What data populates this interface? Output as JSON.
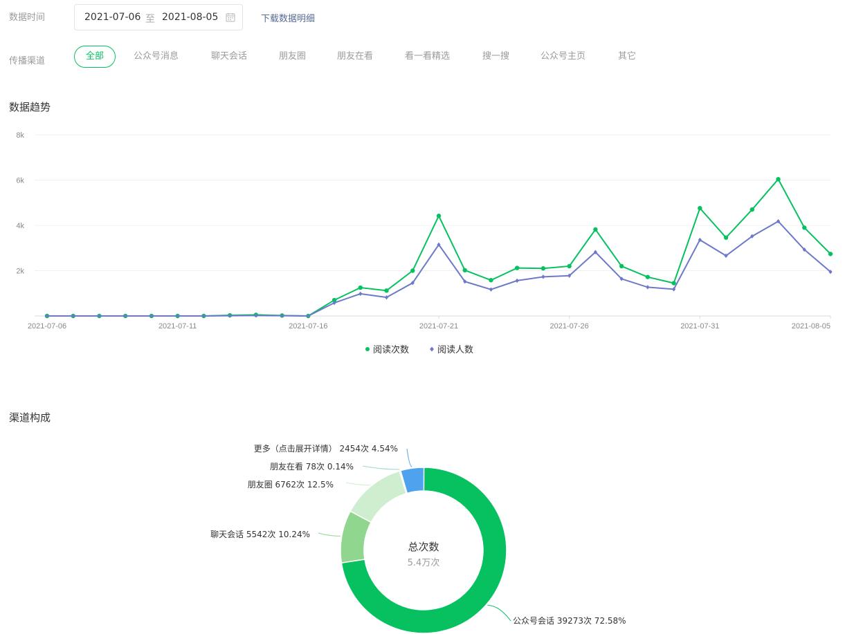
{
  "filters": {
    "date_label": "数据时间",
    "date_start": "2021-07-06",
    "date_separator": "至",
    "date_end": "2021-08-05",
    "download_label": "下载数据明细",
    "channel_label": "传播渠道",
    "tabs": [
      {
        "label": "全部",
        "active": true
      },
      {
        "label": "公众号消息",
        "active": false
      },
      {
        "label": "聊天会话",
        "active": false
      },
      {
        "label": "朋友圈",
        "active": false
      },
      {
        "label": "朋友在看",
        "active": false
      },
      {
        "label": "看一看精选",
        "active": false
      },
      {
        "label": "搜一搜",
        "active": false
      },
      {
        "label": "公众号主页",
        "active": false
      },
      {
        "label": "其它",
        "active": false
      }
    ]
  },
  "trend_title": "数据趋势",
  "donut_title": "渠道构成",
  "colors": {
    "green": "#07c160",
    "purple": "#6c78c9",
    "light_green": "#91d68f",
    "pale_green": "#cfedcf",
    "blue": "#4fa2ee",
    "grid": "#f0f0f0",
    "axis_text": "#888888"
  },
  "chart_data": [
    {
      "type": "line",
      "x": [
        "2021-07-06",
        "2021-07-07",
        "2021-07-08",
        "2021-07-09",
        "2021-07-10",
        "2021-07-11",
        "2021-07-12",
        "2021-07-13",
        "2021-07-14",
        "2021-07-15",
        "2021-07-16",
        "2021-07-17",
        "2021-07-18",
        "2021-07-19",
        "2021-07-20",
        "2021-07-21",
        "2021-07-22",
        "2021-07-23",
        "2021-07-24",
        "2021-07-25",
        "2021-07-26",
        "2021-07-27",
        "2021-07-28",
        "2021-07-29",
        "2021-07-30",
        "2021-07-31",
        "2021-08-01",
        "2021-08-02",
        "2021-08-03",
        "2021-08-04",
        "2021-08-05"
      ],
      "x_tick_labels": [
        "2021-07-06",
        "2021-07-11",
        "2021-07-16",
        "2021-07-21",
        "2021-07-26",
        "2021-07-31",
        "2021-08-05"
      ],
      "y_tick_labels": [
        "2k",
        "4k",
        "6k",
        "8k"
      ],
      "ylim": [
        0,
        8000
      ],
      "y_ticks": [
        2000,
        4000,
        6000,
        8000
      ],
      "grid": true,
      "legend_position": "bottom-center",
      "series": [
        {
          "name": "阅读次数",
          "color": "#07c160",
          "marker": "circle",
          "values": [
            0,
            0,
            0,
            0,
            0,
            0,
            0,
            30,
            50,
            20,
            0,
            700,
            1250,
            1120,
            2000,
            4420,
            2020,
            1580,
            2120,
            2100,
            2200,
            3820,
            2200,
            1720,
            1450,
            4760,
            3460,
            4700,
            6040,
            3900,
            2740
          ]
        },
        {
          "name": "阅读人数",
          "color": "#6c78c9",
          "marker": "diamond",
          "values": [
            0,
            0,
            0,
            0,
            0,
            0,
            0,
            10,
            20,
            10,
            0,
            580,
            980,
            820,
            1460,
            3150,
            1520,
            1170,
            1560,
            1730,
            1780,
            2820,
            1640,
            1270,
            1180,
            3360,
            2660,
            3520,
            4180,
            2930,
            1950
          ]
        }
      ]
    },
    {
      "type": "pie",
      "center_title": "总次数",
      "center_value": "5.4万次",
      "slices": [
        {
          "name": "公众号会话",
          "value": 39273,
          "percent": 72.58,
          "color": "#07c160",
          "label": "公众号会话 39273次 72.58%"
        },
        {
          "name": "聊天会话",
          "value": 5542,
          "percent": 10.24,
          "color": "#91d68f",
          "label": "聊天会话 5542次 10.24%"
        },
        {
          "name": "朋友圈",
          "value": 6762,
          "percent": 12.5,
          "color": "#cfedcf",
          "label": "朋友圈 6762次 12.5%"
        },
        {
          "name": "朋友在看",
          "value": 78,
          "percent": 0.14,
          "color": "#9fd6d0",
          "label": "朋友在看 78次 0.14%"
        },
        {
          "name": "更多（点击展开详情）",
          "value": 2454,
          "percent": 4.54,
          "color": "#4fa2ee",
          "label": "更多（点击展开详情） 2454次 4.54%"
        }
      ]
    }
  ]
}
